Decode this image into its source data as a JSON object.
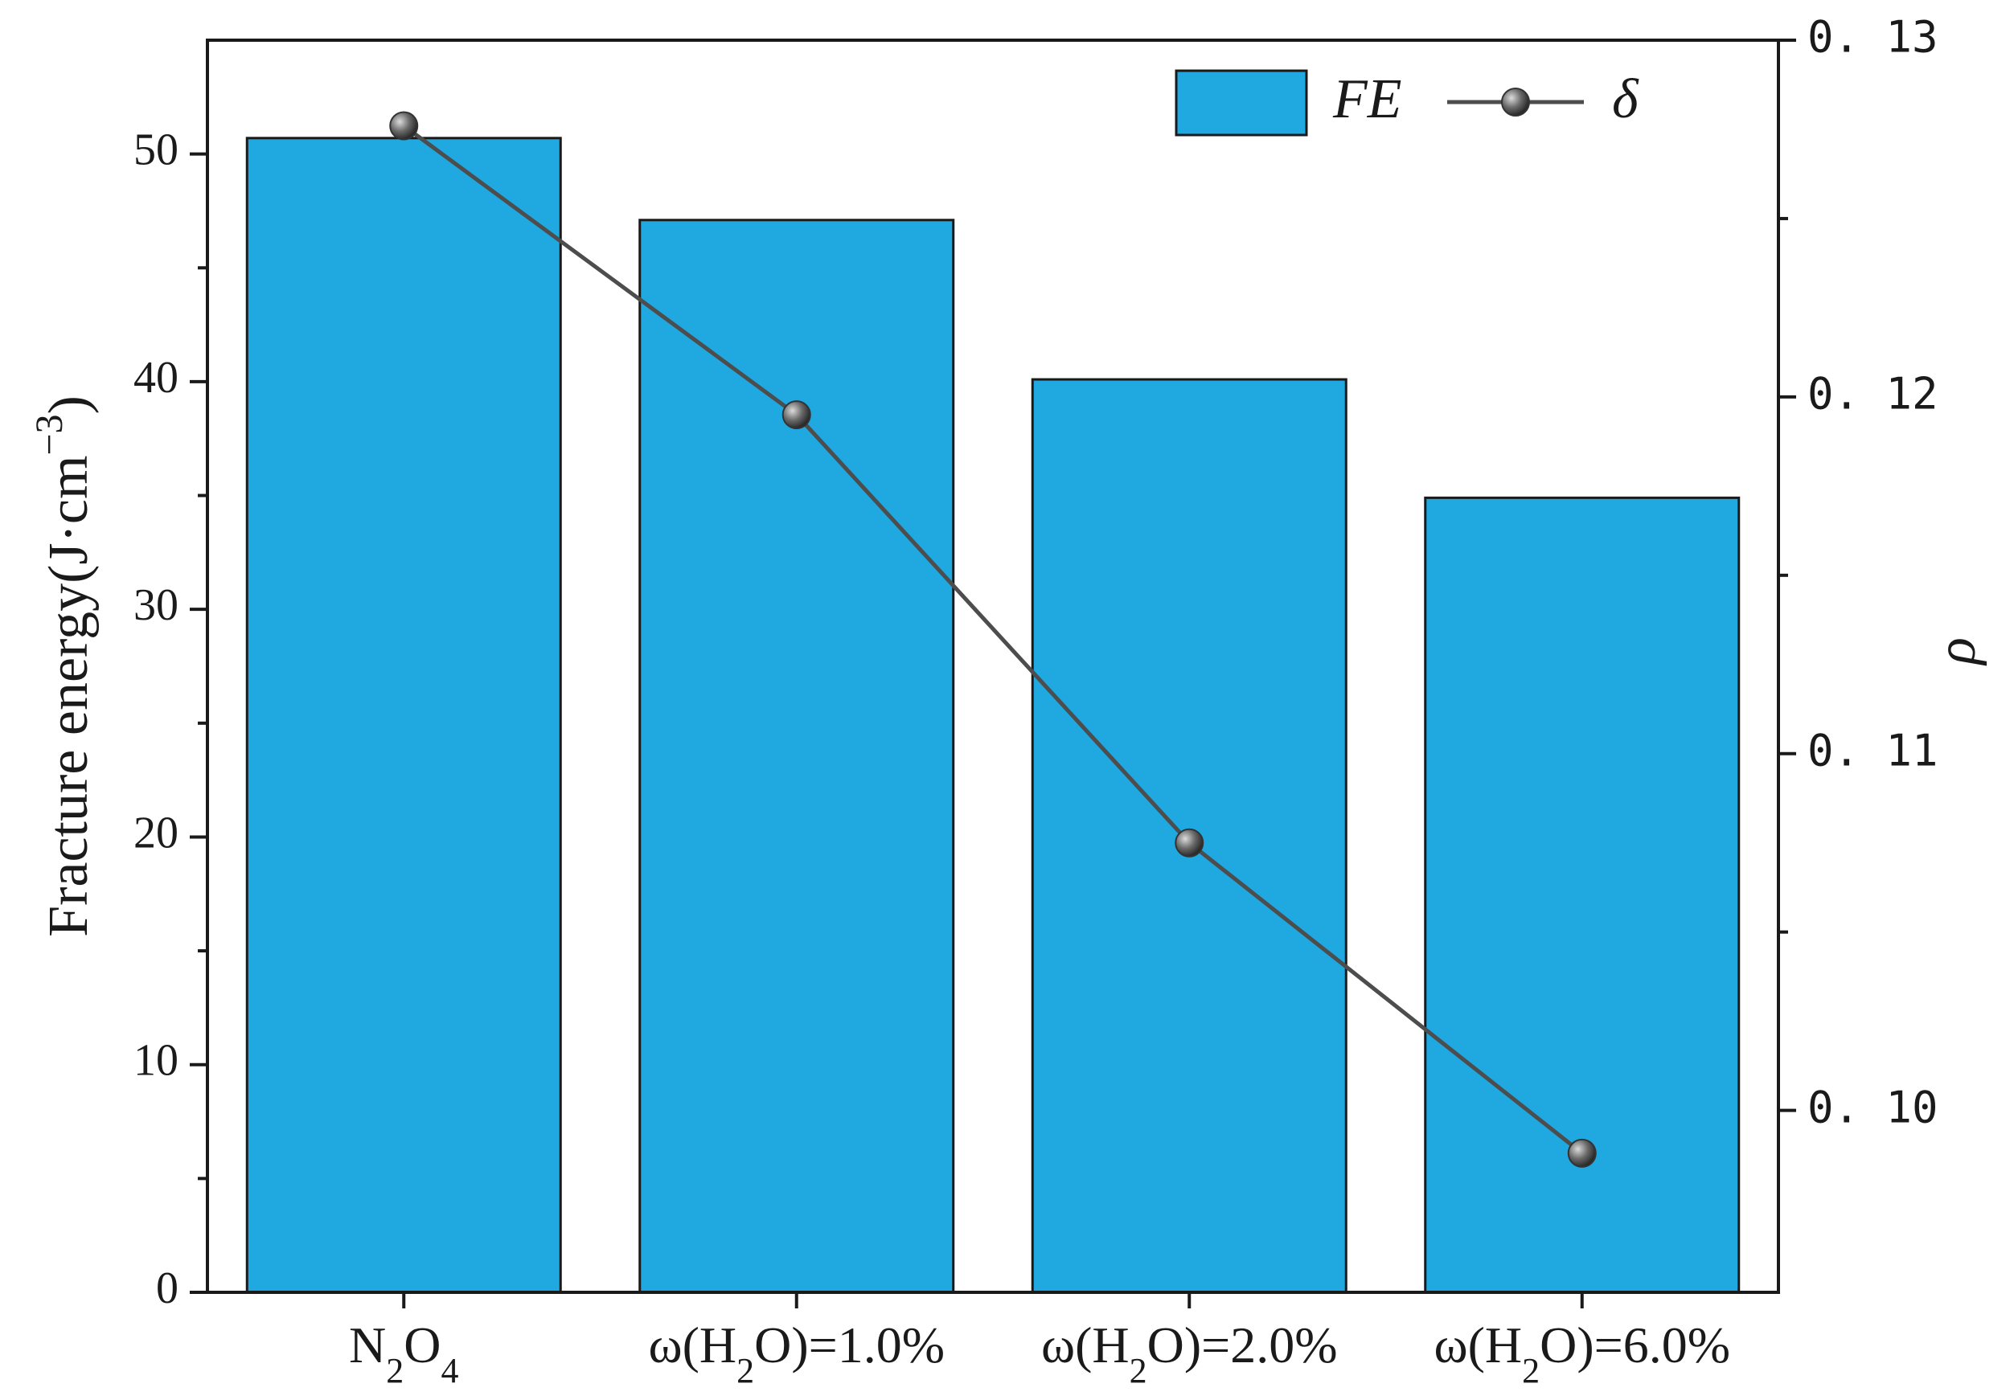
{
  "chart_data": {
    "type": "bar",
    "categories": [
      {
        "base": "N",
        "sub1": "2",
        "mid": "O",
        "sub2": "4",
        "tail": ""
      },
      {
        "base": "ω(H",
        "sub1": "2",
        "mid": "O)=1.0%",
        "sub2": "",
        "tail": ""
      },
      {
        "base": "ω(H",
        "sub1": "2",
        "mid": "O)=2.0%",
        "sub2": "",
        "tail": ""
      },
      {
        "base": "ω(H",
        "sub1": "2",
        "mid": "O)=6.0%",
        "sub2": "",
        "tail": ""
      }
    ],
    "series": [
      {
        "name": "FE",
        "kind": "bar",
        "axis": "left",
        "values": [
          50.7,
          47.1,
          40.1,
          34.9
        ],
        "color": "#20a8e0"
      },
      {
        "name": "δ",
        "kind": "line",
        "axis": "right",
        "values": [
          0.1276,
          0.1195,
          0.1075,
          0.0988
        ],
        "color": "#4d4d4d"
      }
    ],
    "y_left": {
      "label_main": "Fracture energy(J·cm",
      "label_sup": "−3",
      "label_close": ")",
      "ylim": [
        0,
        55
      ],
      "ticks": [
        0,
        10,
        20,
        30,
        40,
        50
      ],
      "tick_labels": [
        "0",
        "10",
        "20",
        "30",
        "40",
        "50"
      ]
    },
    "y_right": {
      "label": "ρ",
      "ylim": [
        0.0949,
        0.13
      ],
      "ticks": [
        0.1,
        0.11,
        0.12,
        0.13
      ],
      "tick_labels": [
        "0. 10",
        "0. 11",
        "0. 12",
        "0. 13"
      ]
    },
    "legend": {
      "position": "top-right",
      "entries": [
        "FE",
        "δ"
      ]
    },
    "grid": false
  }
}
